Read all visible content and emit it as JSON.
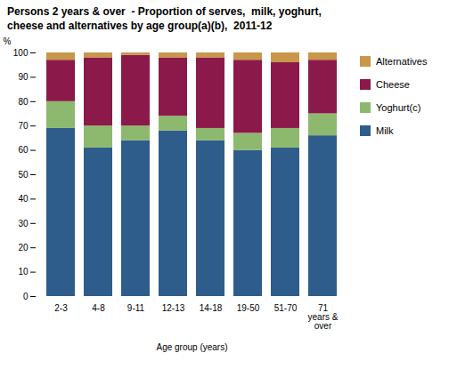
{
  "chart_data": {
    "type": "bar",
    "stacked": true,
    "title": "Persons 2 years & over  - Proportion of serves,  milk, yoghurt,\ncheese and alternatives by age group(a)(b),  2011-12",
    "xlabel": "Age group (years)",
    "ylabel": "%",
    "categories": [
      "2-3",
      "4-8",
      "9-11",
      "12-13",
      "14-18",
      "19-50",
      "51-70",
      "71\nyears &\nover"
    ],
    "series": [
      {
        "name": "Milk",
        "color": "#2E5D8B",
        "values": [
          69,
          61,
          64,
          68,
          64,
          60,
          61,
          66
        ]
      },
      {
        "name": "Yoghurt(c)",
        "color": "#8DB96E",
        "values": [
          11,
          9,
          6,
          6,
          5,
          7,
          8,
          9
        ]
      },
      {
        "name": "Cheese",
        "color": "#8B1A4A",
        "values": [
          17,
          28,
          29,
          24,
          29,
          30,
          27,
          22
        ]
      },
      {
        "name": "Alternatives",
        "color": "#C8974A",
        "values": [
          3,
          2,
          1,
          2,
          2,
          3,
          4,
          3
        ]
      }
    ],
    "ylim": [
      0,
      100
    ],
    "yticks": [
      0,
      10,
      20,
      30,
      40,
      50,
      60,
      70,
      80,
      90,
      100
    ],
    "grid": false,
    "legend": "right"
  }
}
